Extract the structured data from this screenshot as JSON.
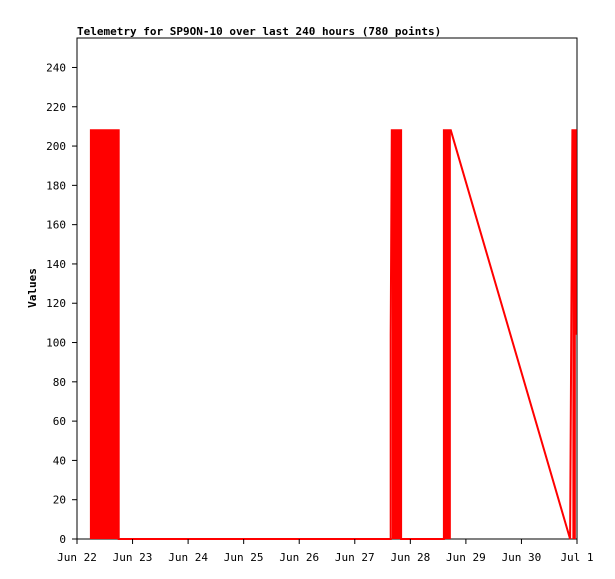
{
  "chart_data": {
    "type": "line",
    "title": "Telemetry for SP9ON-10 over last 240 hours (780 points)",
    "xlabel": "",
    "ylabel": "Values",
    "xlim": [
      "Jun 22",
      "Jul 1"
    ],
    "ylim": [
      0,
      255
    ],
    "x_tick_labels": [
      "Jun 22",
      "Jun 23",
      "Jun 24",
      "Jun 25",
      "Jun 26",
      "Jun 27",
      "Jun 28",
      "Jun 29",
      "Jun 30",
      "Jul 1"
    ],
    "y_ticks": [
      0,
      20,
      40,
      60,
      80,
      100,
      120,
      140,
      160,
      180,
      200,
      220,
      240
    ],
    "grid": false,
    "legend": "none",
    "series_color": "#ff0000",
    "series": [
      {
        "values_description_note": "",
        "points": [
          {
            "x": "Jun 22 06:00",
            "y": 0
          },
          {
            "x": "Jun 22 06:00",
            "y": 208
          },
          {
            "x": "Jun 22 18:00",
            "y": 208
          },
          {
            "x": "Jun 22 18:00",
            "y": 0
          },
          {
            "x": "Jun 27 15:30",
            "y": 0
          },
          {
            "x": "Jun 27 15:30",
            "y": 104
          },
          {
            "x": "Jun 27 16:00",
            "y": 208
          },
          {
            "x": "Jun 27 20:00",
            "y": 208
          },
          {
            "x": "Jun 27 20:00",
            "y": 0
          },
          {
            "x": "Jun 28 14:30",
            "y": 0
          },
          {
            "x": "Jun 28 14:30",
            "y": 208
          },
          {
            "x": "Jun 28 17:30",
            "y": 208
          },
          {
            "x": "Jun 30 21:00",
            "y": 0
          },
          {
            "x": "Jun 30 22:00",
            "y": 208
          },
          {
            "x": "Jun 30 23:30",
            "y": 208
          },
          {
            "x": "Jun 30 23:30",
            "y": 104
          }
        ]
      }
    ],
    "filled_blocks": [
      {
        "x_start": "Jun 22 06:00",
        "x_end": "Jun 22 18:00",
        "y": 208
      },
      {
        "x_start": "Jun 27 16:00",
        "x_end": "Jun 27 20:00",
        "y": 208
      },
      {
        "x_start": "Jun 28 14:30",
        "x_end": "Jun 28 17:30",
        "y": 208
      },
      {
        "x_start": "Jun 30 22:00",
        "x_end": "Jun 30 23:30",
        "y": 208
      }
    ]
  }
}
